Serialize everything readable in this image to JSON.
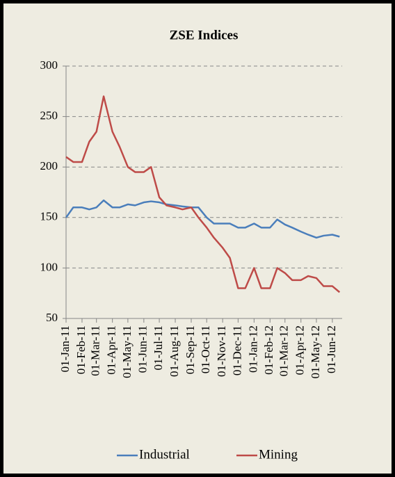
{
  "chart_data": {
    "type": "line",
    "title": "ZSE Indices",
    "x": [
      "2011-01-01",
      "2011-01-15",
      "2011-02-01",
      "2011-02-15",
      "2011-03-01",
      "2011-03-15",
      "2011-04-01",
      "2011-04-15",
      "2011-05-01",
      "2011-05-15",
      "2011-06-01",
      "2011-06-15",
      "2011-07-01",
      "2011-07-15",
      "2011-08-01",
      "2011-08-15",
      "2011-09-01",
      "2011-09-15",
      "2011-10-01",
      "2011-10-15",
      "2011-11-01",
      "2011-11-15",
      "2011-12-01",
      "2011-12-15",
      "2012-01-01",
      "2012-01-15",
      "2012-02-01",
      "2012-02-15",
      "2012-03-01",
      "2012-03-15",
      "2012-04-01",
      "2012-04-15",
      "2012-05-01",
      "2012-05-15",
      "2012-06-01",
      "2012-06-15"
    ],
    "series": [
      {
        "name": "Industrial",
        "color": "#4a7ebb",
        "values": [
          150,
          160,
          160,
          158,
          160,
          167,
          160,
          160,
          163,
          162,
          165,
          166,
          165,
          163,
          162,
          161,
          160,
          160,
          150,
          144,
          144,
          144,
          140,
          140,
          144,
          140,
          140,
          148,
          143,
          140,
          136,
          133,
          130,
          132,
          133,
          131
        ]
      },
      {
        "name": "Mining",
        "color": "#be4b48",
        "values": [
          210,
          205,
          205,
          225,
          235,
          270,
          235,
          220,
          200,
          195,
          195,
          200,
          170,
          162,
          160,
          158,
          160,
          150,
          140,
          130,
          120,
          110,
          80,
          80,
          100,
          80,
          80,
          100,
          95,
          88,
          88,
          92,
          90,
          82,
          82,
          76
        ]
      }
    ],
    "xlim": [
      "2011-01-01",
      "2012-06-20"
    ],
    "xticks": [
      {
        "value": "2011-01-01",
        "label": "01-Jan-11"
      },
      {
        "value": "2011-02-01",
        "label": "01-Feb-11"
      },
      {
        "value": "2011-03-01",
        "label": "01-Mar-11"
      },
      {
        "value": "2011-04-01",
        "label": "01-Apr-11"
      },
      {
        "value": "2011-05-01",
        "label": "01-May-11"
      },
      {
        "value": "2011-06-01",
        "label": "01-Jun-11"
      },
      {
        "value": "2011-07-01",
        "label": "01-Jul-11"
      },
      {
        "value": "2011-08-01",
        "label": "01-Aug-11"
      },
      {
        "value": "2011-09-01",
        "label": "01-Sep-11"
      },
      {
        "value": "2011-10-01",
        "label": "01-Oct-11"
      },
      {
        "value": "2011-11-01",
        "label": "01-Nov-11"
      },
      {
        "value": "2011-12-01",
        "label": "01-Dec-11"
      },
      {
        "value": "2012-01-01",
        "label": "01-Jan-12"
      },
      {
        "value": "2012-02-01",
        "label": "01-Feb-12"
      },
      {
        "value": "2012-03-01",
        "label": "01-Mar-12"
      },
      {
        "value": "2012-04-01",
        "label": "01-Apr-12"
      },
      {
        "value": "2012-05-01",
        "label": "01-May-12"
      },
      {
        "value": "2012-06-01",
        "label": "01-Jun-12"
      }
    ],
    "ylim": [
      50,
      300
    ],
    "yticks": [
      50,
      100,
      150,
      200,
      250,
      300
    ],
    "grid": true,
    "legend": "bottom"
  }
}
